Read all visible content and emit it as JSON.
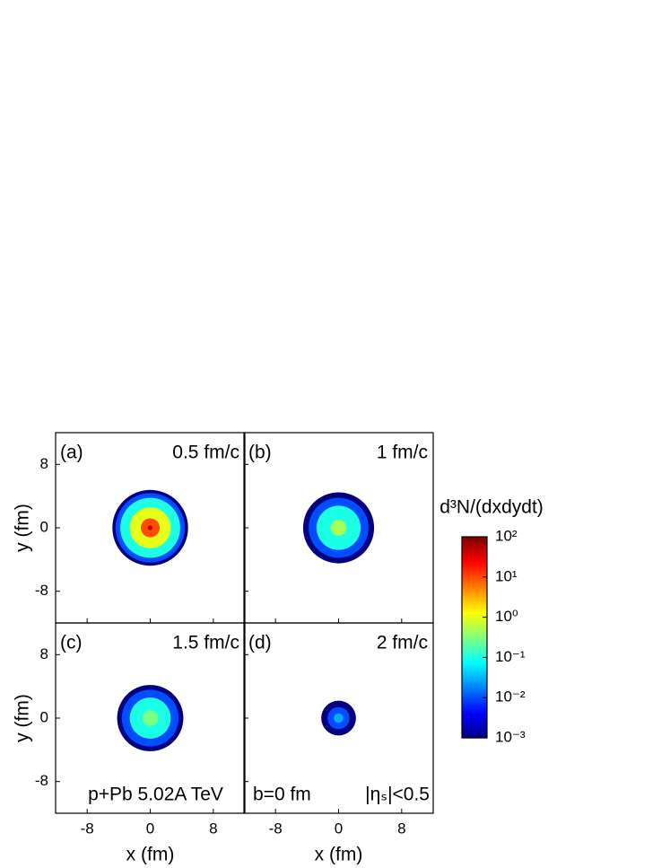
{
  "chart_data": [
    {
      "type": "heatmap",
      "label": "(a)",
      "time": "0.5 fm/c",
      "ylabel": "y (fm)",
      "xlim": [
        -12,
        12
      ],
      "ylim": [
        -12,
        12
      ],
      "xticks": [
        -8,
        0,
        8
      ],
      "yticks": [
        -8,
        0,
        8
      ],
      "levels": [
        0.001,
        0.01,
        0.1,
        1,
        10,
        50
      ],
      "radii": [
        4.8,
        4.4,
        3.8,
        2.6,
        1.2,
        0.3
      ]
    },
    {
      "type": "heatmap",
      "label": "(b)",
      "time": "1 fm/c",
      "xlim": [
        -12,
        12
      ],
      "ylim": [
        -12,
        12
      ],
      "xticks": [
        -8,
        0,
        8
      ],
      "yticks": [
        -8,
        0,
        8
      ],
      "levels": [
        0.001,
        0.01,
        0.1,
        0.5
      ],
      "radii": [
        4.5,
        3.8,
        2.8,
        1.0
      ]
    },
    {
      "type": "heatmap",
      "label": "(c)",
      "time": "1.5 fm/c",
      "ylabel": "y (fm)",
      "xlabel": "x (fm)",
      "annotation": "p+Pb 5.02A TeV",
      "xlim": [
        -12,
        12
      ],
      "ylim": [
        -12,
        12
      ],
      "xticks": [
        -8,
        0,
        8
      ],
      "yticks": [
        -8,
        0,
        8
      ],
      "levels": [
        0.001,
        0.01,
        0.1,
        0.3
      ],
      "radii": [
        4.2,
        3.6,
        2.6,
        1.0
      ]
    },
    {
      "type": "heatmap",
      "label": "(d)",
      "time": "2 fm/c",
      "xlabel": "x (fm)",
      "annotation": "b=0 fm",
      "annotation2": "|ηₛ|<0.5",
      "xlim": [
        -12,
        12
      ],
      "ylim": [
        -12,
        12
      ],
      "xticks": [
        -8,
        0,
        8
      ],
      "yticks": [
        -8,
        0,
        8
      ],
      "levels": [
        0.001,
        0.01,
        0.03
      ],
      "radii": [
        2.2,
        1.4,
        0.6
      ]
    }
  ],
  "colorbar": {
    "title": "d³N/(dxdydt)",
    "clim": [
      0.001,
      100
    ],
    "log": true,
    "colormap": "jet",
    "ticks": [
      {
        "value": 100,
        "label": "10²"
      },
      {
        "value": 10,
        "label": "10¹"
      },
      {
        "value": 1,
        "label": "10⁰"
      },
      {
        "value": 0.1,
        "label": "10⁻¹"
      },
      {
        "value": 0.01,
        "label": "10⁻²"
      },
      {
        "value": 0.001,
        "label": "10⁻³"
      }
    ]
  }
}
